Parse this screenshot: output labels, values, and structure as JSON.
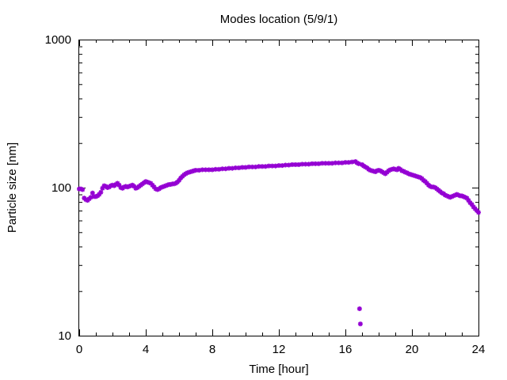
{
  "chart_data": {
    "type": "scatter",
    "title": "Modes location (5/9/1)",
    "xlabel": "Time [hour]",
    "ylabel": "Particle size [nm]",
    "xlim": [
      0,
      24
    ],
    "ylim": [
      10,
      1000
    ],
    "yscale": "log",
    "grid": false,
    "legend": "none",
    "marker_color": "#9400d3",
    "x_ticks": [
      "0",
      "4",
      "8",
      "12",
      "16",
      "20",
      "24"
    ],
    "y_ticks": [
      "10",
      "100",
      "1000"
    ],
    "series": [
      {
        "points": [
          [
            0.0,
            98
          ],
          [
            0.1,
            98
          ],
          [
            0.2,
            97
          ],
          [
            0.3,
            85
          ],
          [
            0.4,
            83
          ],
          [
            0.5,
            82
          ],
          [
            0.6,
            84
          ],
          [
            0.7,
            86
          ],
          [
            0.8,
            92
          ],
          [
            0.9,
            87
          ],
          [
            1.0,
            87
          ],
          [
            1.1,
            88
          ],
          [
            1.2,
            90
          ],
          [
            1.3,
            93
          ],
          [
            1.4,
            99
          ],
          [
            1.5,
            103
          ],
          [
            1.6,
            102
          ],
          [
            1.7,
            100
          ],
          [
            1.8,
            101
          ],
          [
            1.9,
            103
          ],
          [
            2.0,
            104
          ],
          [
            2.1,
            103
          ],
          [
            2.2,
            105
          ],
          [
            2.3,
            107
          ],
          [
            2.4,
            104
          ],
          [
            2.5,
            100
          ],
          [
            2.6,
            99
          ],
          [
            2.7,
            101
          ],
          [
            2.8,
            102
          ],
          [
            2.9,
            101
          ],
          [
            3.0,
            102
          ],
          [
            3.1,
            103
          ],
          [
            3.2,
            104
          ],
          [
            3.3,
            102
          ],
          [
            3.4,
            99
          ],
          [
            3.5,
            100
          ],
          [
            3.6,
            102
          ],
          [
            3.7,
            104
          ],
          [
            3.8,
            106
          ],
          [
            3.9,
            108
          ],
          [
            4.0,
            110
          ],
          [
            4.1,
            109
          ],
          [
            4.2,
            108
          ],
          [
            4.3,
            107
          ],
          [
            4.4,
            104
          ],
          [
            4.5,
            101
          ],
          [
            4.6,
            98
          ],
          [
            4.7,
            97
          ],
          [
            4.8,
            98
          ],
          [
            4.9,
            100
          ],
          [
            5.0,
            101
          ],
          [
            5.1,
            102
          ],
          [
            5.2,
            103
          ],
          [
            5.3,
            104
          ],
          [
            5.4,
            105
          ],
          [
            5.5,
            105
          ],
          [
            5.6,
            106
          ],
          [
            5.7,
            106
          ],
          [
            5.8,
            107
          ],
          [
            5.9,
            109
          ],
          [
            6.0,
            112
          ],
          [
            6.1,
            116
          ],
          [
            6.2,
            119
          ],
          [
            6.3,
            122
          ],
          [
            6.4,
            124
          ],
          [
            6.5,
            126
          ],
          [
            6.6,
            127
          ],
          [
            6.7,
            128
          ],
          [
            6.8,
            129
          ],
          [
            6.9,
            130
          ],
          [
            7.0,
            131
          ],
          [
            7.2,
            131
          ],
          [
            7.4,
            132
          ],
          [
            7.6,
            132
          ],
          [
            7.8,
            132
          ],
          [
            8.0,
            132
          ],
          [
            8.2,
            133
          ],
          [
            8.4,
            133
          ],
          [
            8.6,
            134
          ],
          [
            8.8,
            134
          ],
          [
            9.0,
            135
          ],
          [
            9.2,
            135
          ],
          [
            9.4,
            136
          ],
          [
            9.6,
            136
          ],
          [
            9.8,
            137
          ],
          [
            10.0,
            137
          ],
          [
            10.2,
            138
          ],
          [
            10.4,
            138
          ],
          [
            10.6,
            138
          ],
          [
            10.8,
            139
          ],
          [
            11.0,
            139
          ],
          [
            11.2,
            139
          ],
          [
            11.4,
            140
          ],
          [
            11.6,
            140
          ],
          [
            11.8,
            140
          ],
          [
            12.0,
            141
          ],
          [
            12.2,
            141
          ],
          [
            12.4,
            142
          ],
          [
            12.6,
            142
          ],
          [
            12.8,
            143
          ],
          [
            13.0,
            143
          ],
          [
            13.2,
            143
          ],
          [
            13.4,
            144
          ],
          [
            13.6,
            144
          ],
          [
            13.8,
            144
          ],
          [
            14.0,
            145
          ],
          [
            14.2,
            145
          ],
          [
            14.4,
            145
          ],
          [
            14.6,
            146
          ],
          [
            14.8,
            146
          ],
          [
            15.0,
            146
          ],
          [
            15.2,
            146
          ],
          [
            15.4,
            147
          ],
          [
            15.6,
            147
          ],
          [
            15.8,
            147
          ],
          [
            16.0,
            148
          ],
          [
            16.2,
            148
          ],
          [
            16.4,
            149
          ],
          [
            16.6,
            150
          ],
          [
            16.7,
            147
          ],
          [
            16.8,
            145
          ],
          [
            16.85,
            15.2
          ],
          [
            16.9,
            12
          ],
          [
            17.0,
            143
          ],
          [
            17.1,
            140
          ],
          [
            17.2,
            138
          ],
          [
            17.3,
            136
          ],
          [
            17.4,
            133
          ],
          [
            17.5,
            131
          ],
          [
            17.6,
            130
          ],
          [
            17.7,
            129
          ],
          [
            17.8,
            128
          ],
          [
            17.9,
            130
          ],
          [
            18.0,
            131
          ],
          [
            18.1,
            130
          ],
          [
            18.2,
            128
          ],
          [
            18.3,
            126
          ],
          [
            18.4,
            124
          ],
          [
            18.5,
            127
          ],
          [
            18.6,
            130
          ],
          [
            18.7,
            132
          ],
          [
            18.8,
            133
          ],
          [
            18.9,
            134
          ],
          [
            19.0,
            133
          ],
          [
            19.1,
            132
          ],
          [
            19.2,
            135
          ],
          [
            19.3,
            133
          ],
          [
            19.4,
            130
          ],
          [
            19.5,
            129
          ],
          [
            19.6,
            127
          ],
          [
            19.7,
            126
          ],
          [
            19.8,
            124
          ],
          [
            19.9,
            123
          ],
          [
            20.0,
            122
          ],
          [
            20.1,
            121
          ],
          [
            20.2,
            120
          ],
          [
            20.3,
            119
          ],
          [
            20.4,
            118
          ],
          [
            20.5,
            117
          ],
          [
            20.6,
            115
          ],
          [
            20.7,
            112
          ],
          [
            20.8,
            110
          ],
          [
            20.9,
            107
          ],
          [
            21.0,
            104
          ],
          [
            21.1,
            102
          ],
          [
            21.2,
            101
          ],
          [
            21.3,
            101
          ],
          [
            21.4,
            100
          ],
          [
            21.5,
            98
          ],
          [
            21.6,
            96
          ],
          [
            21.7,
            94
          ],
          [
            21.8,
            92
          ],
          [
            21.9,
            91
          ],
          [
            22.0,
            89
          ],
          [
            22.1,
            88
          ],
          [
            22.2,
            87
          ],
          [
            22.3,
            86
          ],
          [
            22.4,
            87
          ],
          [
            22.5,
            88
          ],
          [
            22.6,
            89
          ],
          [
            22.7,
            90
          ],
          [
            22.8,
            89
          ],
          [
            22.9,
            88
          ],
          [
            23.0,
            88
          ],
          [
            23.1,
            87
          ],
          [
            23.2,
            86
          ],
          [
            23.3,
            85
          ],
          [
            23.4,
            82
          ],
          [
            23.5,
            79
          ],
          [
            23.6,
            77
          ],
          [
            23.7,
            74
          ],
          [
            23.8,
            72
          ],
          [
            23.9,
            70
          ],
          [
            24.0,
            68
          ]
        ]
      }
    ]
  }
}
